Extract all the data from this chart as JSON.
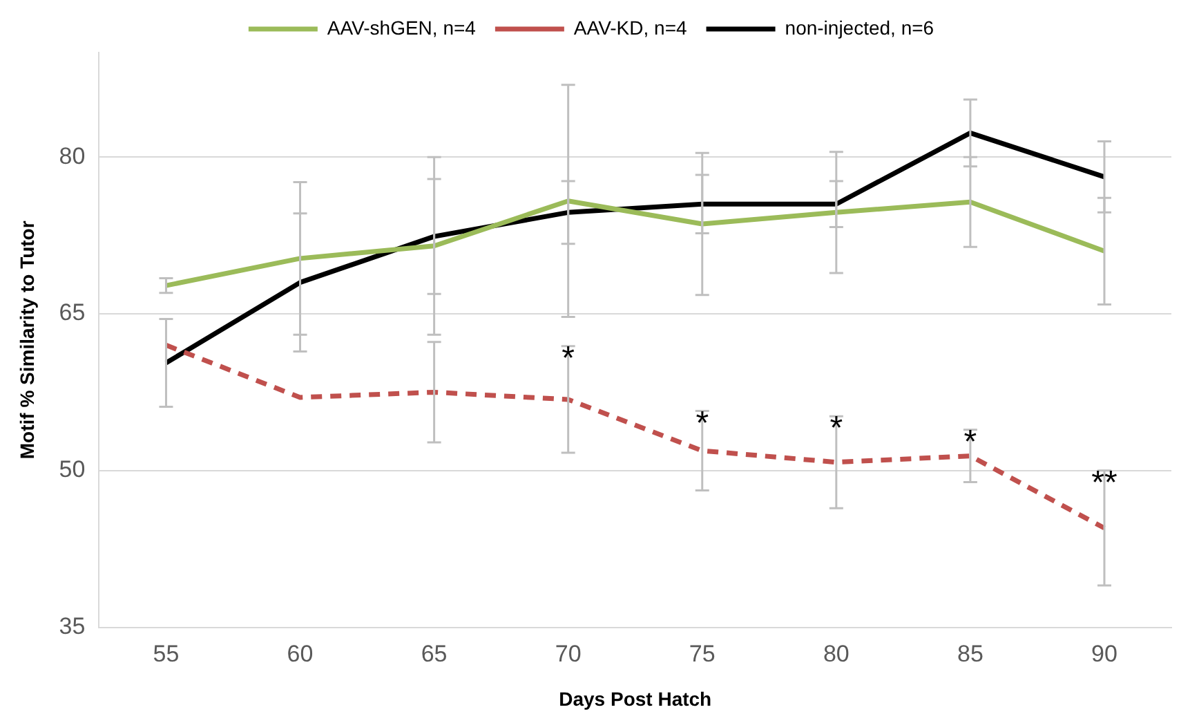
{
  "chart_data": {
    "type": "line",
    "xlabel": "Days Post Hatch",
    "ylabel": "Motif % Similarity to Tutor",
    "categories": [
      "55",
      "60",
      "65",
      "70",
      "75",
      "80",
      "85",
      "90"
    ],
    "series": [
      {
        "name": "AAV-shGEN, n=4",
        "color": "#9bbb59",
        "line_style": "solid",
        "values": [
          67.7,
          70.3,
          71.5,
          75.8,
          73.6,
          74.7,
          75.7,
          71.0
        ],
        "errors": [
          0.7,
          7.3,
          8.5,
          11.1,
          6.8,
          5.8,
          4.3,
          5.1
        ]
      },
      {
        "name": "AAV-KD, n=4",
        "color": "#c0504d",
        "line_style": "dashed",
        "values": [
          62.0,
          57.0,
          57.5,
          56.8,
          51.9,
          50.8,
          51.4,
          44.5
        ],
        "errors": [
          null,
          null,
          4.8,
          5.1,
          3.8,
          4.4,
          2.5,
          5.5
        ]
      },
      {
        "name": "non-injected, n=6",
        "color": "#000000",
        "line_style": "solid",
        "values": [
          60.3,
          68.0,
          72.4,
          74.7,
          75.5,
          75.5,
          82.3,
          78.1
        ],
        "errors": [
          4.2,
          6.6,
          5.5,
          3.0,
          2.8,
          2.2,
          3.2,
          3.4
        ]
      }
    ],
    "ylim": [
      35,
      90
    ],
    "yticks": [
      35,
      50,
      65,
      80
    ],
    "grid": "y",
    "legend": "top",
    "marker": "none",
    "annotations": [
      {
        "text": "*",
        "x": "70",
        "y": 61.9
      },
      {
        "text": "*",
        "x": "75",
        "y": 55.7
      },
      {
        "text": "*",
        "x": "80",
        "y": 55.2
      },
      {
        "text": "*",
        "x": "85",
        "y": 53.9
      },
      {
        "text": "**",
        "x": "90",
        "y": 50.0
      }
    ]
  }
}
